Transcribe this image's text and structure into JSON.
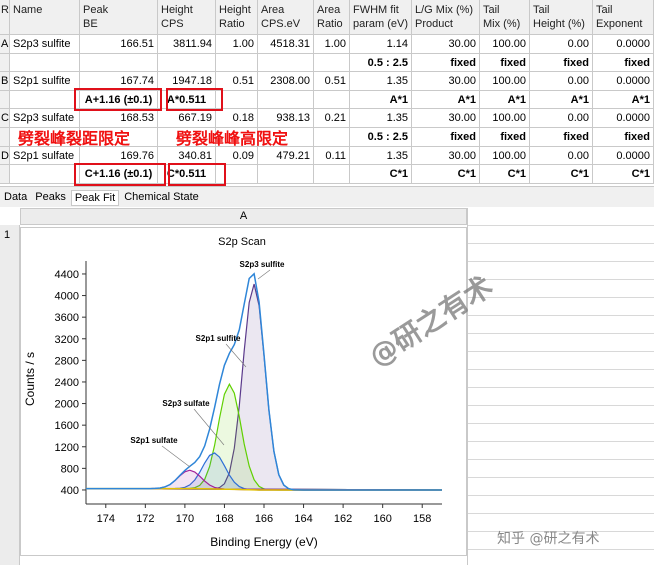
{
  "table": {
    "headers": [
      [
        "R"
      ],
      [
        "Name"
      ],
      [
        "Peak",
        "BE"
      ],
      [
        "Height",
        "CPS"
      ],
      [
        "Height",
        "Ratio"
      ],
      [
        "Area",
        "CPS.eV"
      ],
      [
        "Area",
        "Ratio"
      ],
      [
        "FWHM fit",
        "param (eV)"
      ],
      [
        "L/G Mix (%)",
        "Product"
      ],
      [
        "Tail",
        "Mix (%)"
      ],
      [
        "Tail",
        "Height (%)"
      ],
      [
        "Tail",
        "Exponent"
      ]
    ],
    "rows": [
      [
        "A",
        "S2p3 sulfite",
        "166.51",
        "3811.94",
        "1.00",
        "4518.31",
        "1.00",
        "1.14",
        "30.00",
        "100.00",
        "0.00",
        "0.0000"
      ],
      [
        null,
        null,
        null,
        null,
        null,
        null,
        null,
        "0.5 : 2.5",
        "fixed",
        "fixed",
        "fixed",
        "fixed"
      ],
      [
        "B",
        "S2p1 sulfite",
        "167.74",
        "1947.18",
        "0.51",
        "2308.00",
        "0.51",
        "1.35",
        "30.00",
        "100.00",
        "0.00",
        "0.0000"
      ],
      [
        null,
        null,
        "A+1.16 (±0.1)",
        "A*0.511",
        null,
        null,
        null,
        "A*1",
        "A*1",
        "A*1",
        "A*1",
        "A*1"
      ],
      [
        "C",
        "S2p3 sulfate",
        "168.53",
        "667.19",
        "0.18",
        "938.13",
        "0.21",
        "1.35",
        "30.00",
        "100.00",
        "0.00",
        "0.0000"
      ],
      [
        null,
        null,
        null,
        null,
        null,
        null,
        null,
        "0.5 : 2.5",
        "fixed",
        "fixed",
        "fixed",
        "fixed"
      ],
      [
        "D",
        "S2p1 sulfate",
        "169.76",
        "340.81",
        "0.09",
        "479.21",
        "0.11",
        "1.35",
        "30.00",
        "100.00",
        "0.00",
        "0.0000"
      ],
      [
        null,
        null,
        "C+1.16 (±0.1)",
        "C*0.511",
        null,
        null,
        null,
        "C*1",
        "C*1",
        "C*1",
        "C*1",
        "C*1"
      ]
    ],
    "annotations": [
      "劈裂峰裂距限定",
      "劈裂峰峰高限定"
    ]
  },
  "tabs": [
    "Data",
    "Peaks",
    "Peak Fit",
    "Chemical State"
  ],
  "sheet": {
    "column": "A",
    "row": "1"
  },
  "watermarks": [
    "@研之有术",
    "知乎 @研之有术"
  ],
  "chart_data": {
    "type": "line",
    "title": "S2p Scan",
    "x_label": "Binding Energy (eV)",
    "y_label": "Counts / s",
    "x": [
      175,
      174,
      173,
      172,
      171.75,
      171.5,
      171.25,
      171,
      170.75,
      170.5,
      170.25,
      170,
      169.75,
      169.5,
      169.25,
      169,
      168.75,
      168.5,
      168.25,
      168,
      167.75,
      167.5,
      167.25,
      167,
      166.75,
      166.5,
      166.25,
      166,
      165.75,
      165.5,
      165.25,
      165,
      164.75,
      164.5,
      164,
      163,
      162,
      161,
      160,
      159,
      158,
      157
    ],
    "xlim": [
      175,
      157
    ],
    "xticks": [
      174,
      172,
      170,
      168,
      166,
      164,
      162,
      160,
      158
    ],
    "ylim": [
      140,
      4640
    ],
    "yticks": [
      400,
      800,
      1200,
      1600,
      2000,
      2400,
      2800,
      3200,
      3600,
      4000,
      4400
    ],
    "series": [
      {
        "name": "S2p3 sulfite",
        "color": "#5b3a8c",
        "values": [
          425,
          425,
          425,
          425,
          425,
          425,
          425,
          425,
          425,
          425,
          425,
          425,
          425,
          425,
          424,
          422,
          421,
          424,
          443,
          514,
          718,
          1174,
          1960,
          2977,
          3872,
          4214,
          3812,
          2888,
          1878,
          1115,
          682,
          490,
          424,
          405,
          400,
          400,
          400,
          400,
          400,
          400,
          400,
          400
        ]
      },
      {
        "name": "S2p1 sulfite",
        "color": "#5fd000",
        "values": [
          425,
          425,
          425,
          425,
          425,
          425,
          425,
          425,
          425,
          425,
          425,
          426,
          429,
          442,
          485,
          596,
          832,
          1227,
          1727,
          2171,
          2359,
          2194,
          1759,
          1252,
          842,
          590,
          466,
          419,
          405,
          401,
          400,
          400,
          400,
          400,
          400,
          400,
          400,
          400,
          400,
          400,
          400,
          400
        ]
      },
      {
        "name": "S2p3 sulfate",
        "color": "#2d6fd6",
        "values": [
          425,
          425,
          425,
          425,
          425,
          425,
          425,
          425,
          425,
          427,
          432,
          450,
          494,
          584,
          727,
          899,
          1040,
          1084,
          1008,
          849,
          676,
          543,
          463,
          425,
          409,
          403,
          400,
          400,
          400,
          400,
          400,
          400,
          400,
          400,
          400,
          400,
          400,
          400,
          400,
          400,
          400,
          400
        ]
      },
      {
        "name": "S2p1 sulfate",
        "color": "#a0209a",
        "values": [
          425,
          425,
          425,
          425,
          426,
          428,
          437,
          458,
          502,
          573,
          662,
          737,
          766,
          733,
          654,
          564,
          492,
          448,
          427,
          417,
          413,
          410,
          408,
          406,
          404,
          402,
          400,
          400,
          400,
          400,
          400,
          400,
          400,
          400,
          400,
          400,
          400,
          400,
          400,
          400,
          400,
          400
        ]
      },
      {
        "color": "#e2c200",
        "values": [
          425,
          425,
          425,
          425,
          425,
          425,
          425,
          425,
          425,
          425,
          425,
          425,
          425,
          425,
          424,
          422,
          420,
          418,
          416,
          414,
          412,
          410,
          408,
          406,
          404,
          402,
          400,
          400,
          400,
          400,
          400,
          400,
          400,
          400,
          400,
          400,
          400,
          400,
          400,
          400,
          400,
          400
        ]
      },
      {
        "color": "#2f86d8",
        "values": [
          425,
          425,
          425,
          425,
          426,
          428,
          437,
          458,
          502,
          575,
          669,
          763,
          839,
          909,
          1018,
          1215,
          1525,
          1929,
          2357,
          2709,
          2930,
          3091,
          3366,
          3842,
          4315,
          4403,
          3878,
          2907,
          1883,
          1116,
          682,
          490,
          424,
          405,
          400,
          400,
          400,
          400,
          400,
          400,
          400,
          400
        ]
      }
    ]
  }
}
